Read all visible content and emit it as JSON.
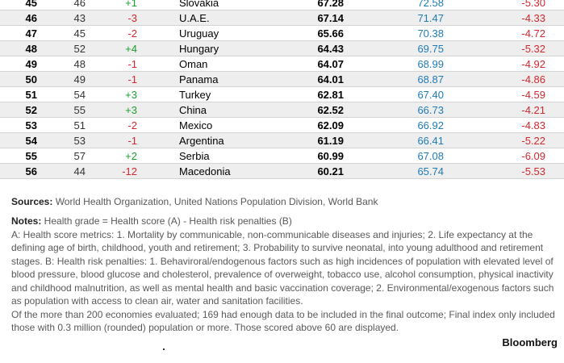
{
  "rows": [
    {
      "rank": "45",
      "prev": "46",
      "change": "+1",
      "dir": "up",
      "country": "Slovakia",
      "grade": "67.28",
      "score": "72.58",
      "penalty": "-5.30"
    },
    {
      "rank": "46",
      "prev": "43",
      "change": "-3",
      "dir": "down",
      "country": "U.A.E.",
      "grade": "67.14",
      "score": "71.47",
      "penalty": "-4.33"
    },
    {
      "rank": "47",
      "prev": "45",
      "change": "-2",
      "dir": "down",
      "country": "Uruguay",
      "grade": "65.66",
      "score": "70.38",
      "penalty": "-4.72"
    },
    {
      "rank": "48",
      "prev": "52",
      "change": "+4",
      "dir": "up",
      "country": "Hungary",
      "grade": "64.43",
      "score": "69.75",
      "penalty": "-5.32"
    },
    {
      "rank": "49",
      "prev": "48",
      "change": "-1",
      "dir": "down",
      "country": "Oman",
      "grade": "64.07",
      "score": "68.99",
      "penalty": "-4.92"
    },
    {
      "rank": "50",
      "prev": "49",
      "change": "-1",
      "dir": "down",
      "country": "Panama",
      "grade": "64.01",
      "score": "68.87",
      "penalty": "-4.86"
    },
    {
      "rank": "51",
      "prev": "54",
      "change": "+3",
      "dir": "up",
      "country": "Turkey",
      "grade": "62.81",
      "score": "67.40",
      "penalty": "-4.59"
    },
    {
      "rank": "52",
      "prev": "55",
      "change": "+3",
      "dir": "up",
      "country": "China",
      "grade": "62.52",
      "score": "66.73",
      "penalty": "-4.21"
    },
    {
      "rank": "53",
      "prev": "51",
      "change": "-2",
      "dir": "down",
      "country": "Mexico",
      "grade": "62.09",
      "score": "66.92",
      "penalty": "-4.83"
    },
    {
      "rank": "54",
      "prev": "53",
      "change": "-1",
      "dir": "down",
      "country": "Argentina",
      "grade": "61.19",
      "score": "66.41",
      "penalty": "-5.22"
    },
    {
      "rank": "55",
      "prev": "57",
      "change": "+2",
      "dir": "up",
      "country": "Serbia",
      "grade": "60.99",
      "score": "67.08",
      "penalty": "-6.09"
    },
    {
      "rank": "56",
      "prev": "44",
      "change": "-12",
      "dir": "down",
      "country": "Macedonia",
      "grade": "60.21",
      "score": "65.74",
      "penalty": "-5.53"
    }
  ],
  "sources": {
    "label": "Sources:",
    "text": " World Health Organization, United Nations Population Division, World Bank"
  },
  "notes": {
    "label": "Notes:",
    "intro": " Health grade = Health score (A) - Health risk penalties (B)",
    "body": "A: Health score metrics: 1. Mortality by communicable, non-communicable diseases and injuries; 2. Life expectancy at the defining age of birth, childhood, youth and retirement; 3. Probability to survive neonatal, into young adulthood and retirement stages. B: Health risk penalties: 1. Behaviroral/endogenous factors such as high incidences of population with elevated level of blood pressure, blood glucose and cholesterol, prevalence of overweight, tobacco use, alcohol consumption, physical inactivity and childhood malnutrition, as well as mental health and basic vaccination coverage; 2. Environmental/exogenous factors such as population with access to clean air, water and sanitation facilities.",
    "coverage": "Of the more than 200 economies evaluated; 169 had enough data to be included in the final outcome; Final index only included those with 0.3 million (rounded) population or more. Those scored above 60 are displayed."
  },
  "brand": "Bloomberg",
  "colors": {
    "up": "#1a9e2f",
    "down": "#d0282f",
    "score": "#1f7bb6",
    "stripe": "#eeeeee"
  }
}
